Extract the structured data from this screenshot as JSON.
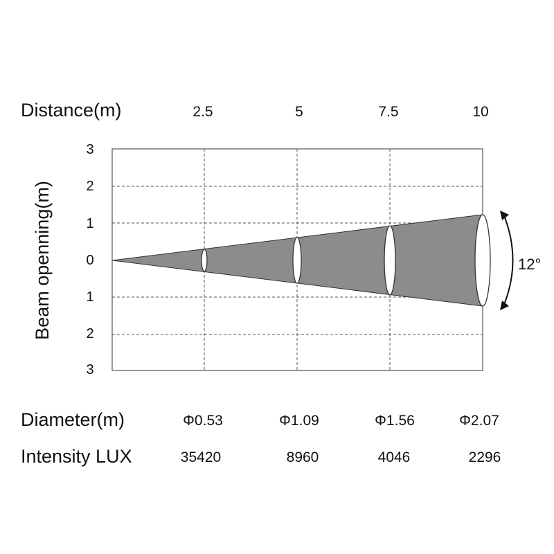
{
  "labels": {
    "distance": "Distance(m)",
    "beam_opening": "Beam openning(m)",
    "diameter": "Diameter(m)",
    "intensity": "Intensity LUX",
    "angle": "12°"
  },
  "y_ticks": [
    "3",
    "2",
    "1",
    "0",
    "1",
    "2",
    "3"
  ],
  "columns": [
    {
      "distance": "2.5",
      "diameter": "Φ0.53",
      "lux": "35420"
    },
    {
      "distance": "5",
      "diameter": "Φ1.09",
      "lux": "8960"
    },
    {
      "distance": "7.5",
      "diameter": "Φ1.56",
      "lux": "4046"
    },
    {
      "distance": "10",
      "diameter": "Φ2.07",
      "lux": "2296"
    }
  ],
  "colors": {
    "beam": "#8c8c8c",
    "grid": "#555555"
  }
}
